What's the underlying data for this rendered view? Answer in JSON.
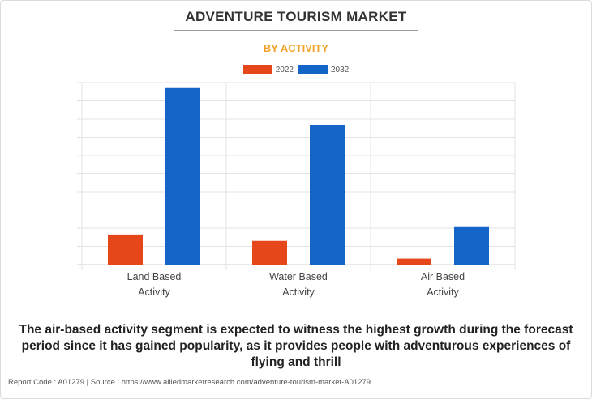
{
  "header": {
    "title": "ADVENTURE TOURISM MARKET",
    "subtitle": "BY ACTIVITY"
  },
  "colors": {
    "accent": "#f2a22a",
    "series_2022": "#e5461a",
    "series_2032": "#1565c8"
  },
  "chart_data": {
    "type": "bar",
    "categories": [
      [
        "Land Based",
        "Activity"
      ],
      [
        "Water Based",
        "Activity"
      ],
      [
        "Air Based",
        "Activity"
      ]
    ],
    "series": [
      {
        "name": "2022",
        "color": "#e5461a",
        "values": [
          16.5,
          13,
          3.3
        ]
      },
      {
        "name": "2032",
        "color": "#1565c8",
        "values": [
          97,
          76.5,
          21
        ]
      }
    ],
    "ylim": [
      0,
      100
    ],
    "grid": true,
    "legend_position": "top-center",
    "xlabel": "",
    "ylabel": ""
  },
  "caption": "The air-based activity segment is expected to witness the highest growth during the forecast period since it has gained popularity, as it provides people with adventurous experiences of flying and thrill",
  "footer": "Report Code : A01279  |  Source : https://www.alliedmarketresearch.com/adventure-tourism-market-A01279"
}
